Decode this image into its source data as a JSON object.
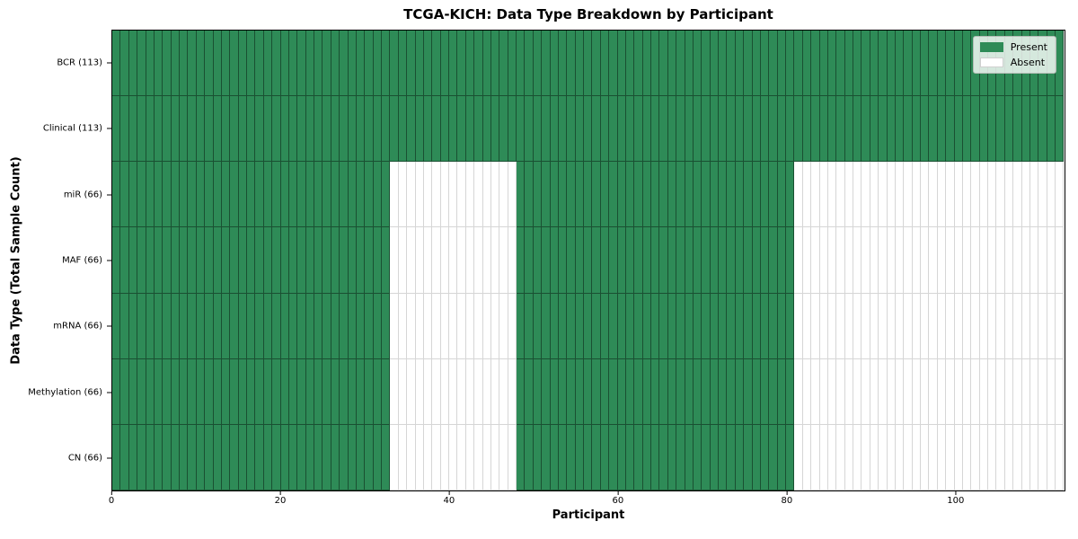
{
  "chart_data": {
    "type": "heatmap",
    "title": "TCGA-KICH: Data Type Breakdown by Participant",
    "xlabel": "Participant",
    "ylabel": "Data Type (Total Sample Count)",
    "n_participants": 113,
    "x_ticks": [
      0,
      20,
      40,
      60,
      80,
      100
    ],
    "xlim": [
      0,
      113
    ],
    "grid": false,
    "legend_position": "upper right",
    "legend": [
      {
        "label": "Present",
        "state": "present"
      },
      {
        "label": "Absent",
        "state": "absent"
      }
    ],
    "colors": {
      "present": "#2e8b57",
      "absent": "#ffffff"
    },
    "rows": [
      {
        "label": "BCR (113)",
        "data_type": "BCR",
        "total_samples": 113,
        "present_ranges": [
          [
            0,
            113
          ]
        ]
      },
      {
        "label": "Clinical (113)",
        "data_type": "Clinical",
        "total_samples": 113,
        "present_ranges": [
          [
            0,
            113
          ]
        ]
      },
      {
        "label": "miR (66)",
        "data_type": "miR",
        "total_samples": 66,
        "present_ranges": [
          [
            0,
            33
          ],
          [
            48,
            81
          ]
        ]
      },
      {
        "label": "MAF (66)",
        "data_type": "MAF",
        "total_samples": 66,
        "present_ranges": [
          [
            0,
            33
          ],
          [
            48,
            81
          ]
        ]
      },
      {
        "label": "mRNA (66)",
        "data_type": "mRNA",
        "total_samples": 66,
        "present_ranges": [
          [
            0,
            33
          ],
          [
            48,
            81
          ]
        ]
      },
      {
        "label": "Methylation (66)",
        "data_type": "Methylation",
        "total_samples": 66,
        "present_ranges": [
          [
            0,
            33
          ],
          [
            48,
            81
          ]
        ]
      },
      {
        "label": "CN (66)",
        "data_type": "CN",
        "total_samples": 66,
        "present_ranges": [
          [
            0,
            33
          ],
          [
            48,
            81
          ]
        ]
      }
    ]
  }
}
